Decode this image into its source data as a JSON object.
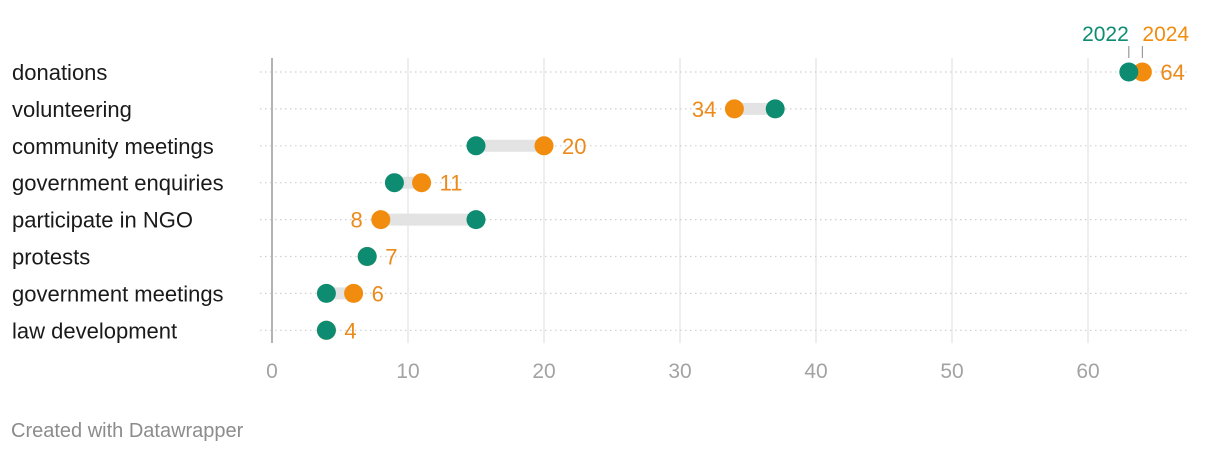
{
  "chart_data": {
    "type": "dot-range",
    "categories": [
      "donations",
      "volunteering",
      "community meetings",
      "government enquiries",
      "participate in NGO",
      "protests",
      "government meetings",
      "law development"
    ],
    "series": [
      {
        "name": "2022",
        "color": "#0e8c72",
        "values": [
          63,
          37,
          15,
          9,
          15,
          7,
          4,
          4
        ]
      },
      {
        "name": "2024",
        "color": "#f28c0f",
        "values": [
          64,
          34,
          20,
          11,
          8,
          7,
          6,
          4
        ]
      }
    ],
    "value_labels": [
      "64",
      "34",
      "20",
      "11",
      "8",
      "7",
      "6",
      "4"
    ],
    "x_ticks": [
      "0",
      "10",
      "20",
      "30",
      "40",
      "50",
      "60"
    ],
    "xlim": [
      0,
      67
    ],
    "legend_placement": "top-right",
    "grid": true
  },
  "footer": "Created with Datawrapper"
}
